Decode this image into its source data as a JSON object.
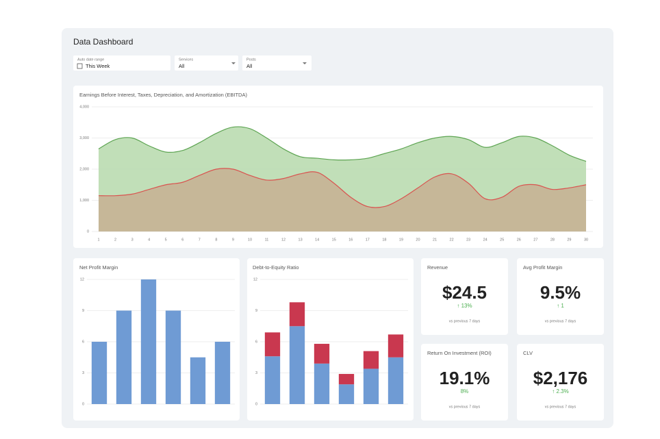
{
  "header": {
    "title": "Data Dashboard"
  },
  "filters": [
    {
      "label": "Auto date range",
      "value": "This Week"
    },
    {
      "label": "Services",
      "value": "All"
    },
    {
      "label": "Posts",
      "value": "All"
    }
  ],
  "chart_data": [
    {
      "type": "area",
      "title": "Earnings Before Interest, Taxes, Depreciation, and Amortization (EBITDA)",
      "categories": [
        "1",
        "2",
        "3",
        "4",
        "5",
        "6",
        "7",
        "8",
        "9",
        "10",
        "11",
        "12",
        "13",
        "14",
        "15",
        "16",
        "17",
        "18",
        "19",
        "20",
        "21",
        "22",
        "23",
        "24",
        "25",
        "26",
        "27",
        "28",
        "29",
        "30"
      ],
      "series": [
        {
          "color": "#5da452",
          "area_color": "#badcb0",
          "values": [
            2650,
            2950,
            3000,
            2750,
            2550,
            2600,
            2850,
            3150,
            3350,
            3300,
            3000,
            2650,
            2400,
            2350,
            2300,
            2300,
            2350,
            2500,
            2650,
            2850,
            3000,
            3050,
            2950,
            2700,
            2850,
            3050,
            3000,
            2750,
            2450,
            2250
          ]
        },
        {
          "color": "#d9534f",
          "area_color": "#c6b395",
          "values": [
            1150,
            1150,
            1200,
            1350,
            1500,
            1580,
            1800,
            2000,
            2000,
            1800,
            1650,
            1700,
            1850,
            1900,
            1550,
            1100,
            800,
            800,
            1050,
            1400,
            1750,
            1850,
            1550,
            1050,
            1100,
            1450,
            1500,
            1350,
            1400,
            1500
          ]
        }
      ],
      "ylim": [
        0,
        4000
      ],
      "yticks": [
        0,
        {
          "value": 1000,
          "label": "1,000"
        },
        {
          "value": 2000,
          "label": "2,000"
        },
        {
          "value": 3000,
          "label": "3,000"
        },
        {
          "value": 4000,
          "label": "4,000"
        }
      ],
      "grid": true
    },
    {
      "type": "bar",
      "title": "Net Profit Margin",
      "color": "#6f9bd4",
      "values": [
        6,
        9,
        12,
        9,
        4.5,
        6
      ],
      "ylim": [
        0,
        12
      ],
      "yticks": [
        0,
        3,
        6,
        9,
        12
      ],
      "grid": true
    },
    {
      "type": "bar",
      "title": "Debt-to-Equity Ratio",
      "stacked": true,
      "series": [
        {
          "color": "#6f9bd4",
          "values": [
            4.6,
            7.5,
            3.9,
            1.9,
            3.4,
            4.5
          ]
        },
        {
          "color": "#c9384f",
          "values": [
            2.3,
            2.3,
            1.9,
            1.0,
            1.7,
            2.2
          ]
        }
      ],
      "ylim": [
        0,
        12
      ],
      "yticks": [
        0,
        3,
        6,
        9,
        12
      ],
      "grid": true
    }
  ],
  "kpis": [
    {
      "title": "Revenue",
      "value": "$24.5",
      "change": "↑ 13%",
      "note": "vs previous 7 days"
    },
    {
      "title": "Avg Profit Margin",
      "value": "9.5%",
      "change": "↑ 1",
      "note": "vs previous 7 days"
    },
    {
      "title": "Return On Investment (ROI)",
      "value": "19.1%",
      "change": "8%",
      "note": "vs previous 7 days"
    },
    {
      "title": "CLV",
      "value": "$2,176",
      "change": "↑ 2.3%",
      "note": "vs previous 7 days"
    }
  ]
}
